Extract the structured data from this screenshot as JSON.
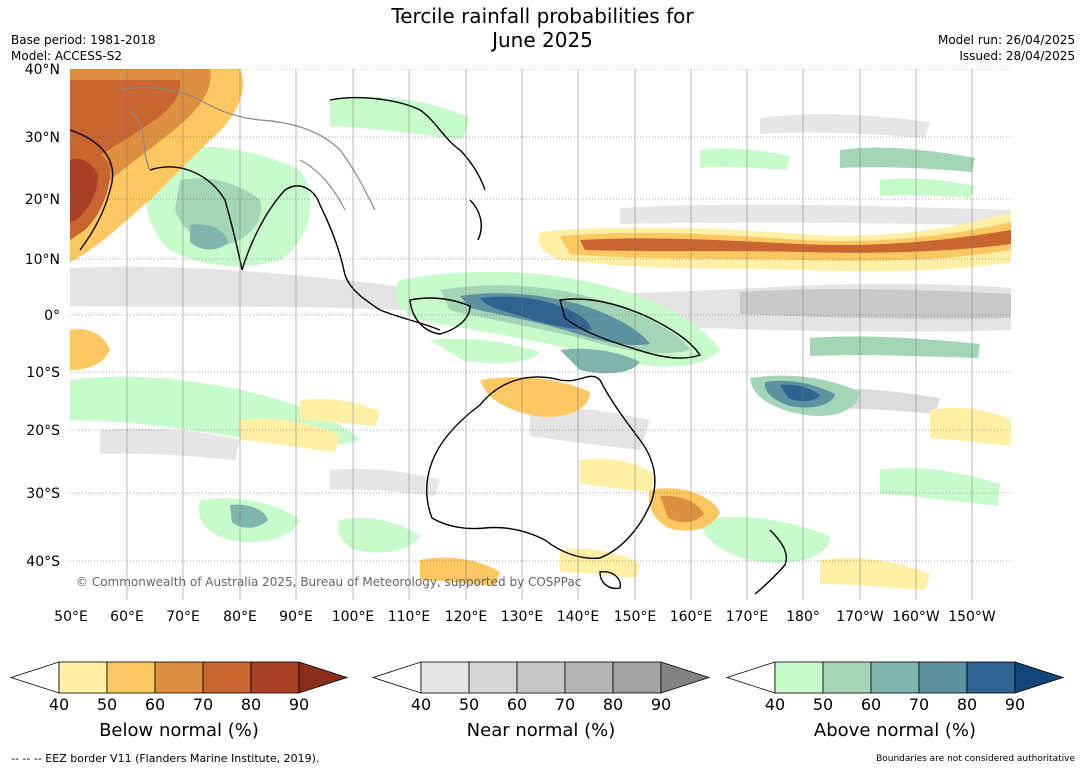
{
  "title_line1": "Tercile rainfall probabilities for",
  "title_line2": "June 2025",
  "base_period": "Base period: 1981-2018",
  "model": "Model: ACCESS-S2",
  "model_run": "Model run: 26/04/2025",
  "issued": "Issued: 28/04/2025",
  "copyright": "© Commonwealth of Australia 2025, Bureau of Meteorology, supported by COSPPac",
  "lat_labels": [
    "40°N",
    "30°N",
    "20°N",
    "10°N",
    "0°",
    "10°S",
    "20°S",
    "30°S",
    "40°S"
  ],
  "lon_labels": [
    "50°E",
    "60°E",
    "70°E",
    "80°E",
    "90°E",
    "100°E",
    "110°E",
    "120°E",
    "130°E",
    "140°E",
    "150°E",
    "160°E",
    "170°E",
    "180°",
    "170°W",
    "160°W",
    "150°W"
  ],
  "colorbars": [
    {
      "title": "Below normal (%)",
      "ticks": [
        "40",
        "50",
        "60",
        "70",
        "80",
        "90"
      ],
      "colors": [
        "#ffffff",
        "#fff0a5",
        "#fdc761",
        "#dd9040",
        "#c86530",
        "#a84024",
        "#8a2e1b"
      ]
    },
    {
      "title": "Near normal (%)",
      "ticks": [
        "40",
        "50",
        "60",
        "70",
        "80",
        "90"
      ],
      "colors": [
        "#ffffff",
        "#e6e6e6",
        "#d6d6d6",
        "#c6c6c6",
        "#b4b4b4",
        "#a3a3a3",
        "#828282"
      ]
    },
    {
      "title": "Above normal (%)",
      "ticks": [
        "40",
        "50",
        "60",
        "70",
        "80",
        "90"
      ],
      "colors": [
        "#ffffff",
        "#c8fbcc",
        "#a3d5b6",
        "#7fb5ae",
        "#5d92a0",
        "#30638f",
        "#12467a"
      ]
    }
  ],
  "footer_eez": "--  --  -- EEZ border V11 (Flanders Marine Institute, 2019).",
  "footer_disclaimer": "Boundaries are not considered authoritative"
}
